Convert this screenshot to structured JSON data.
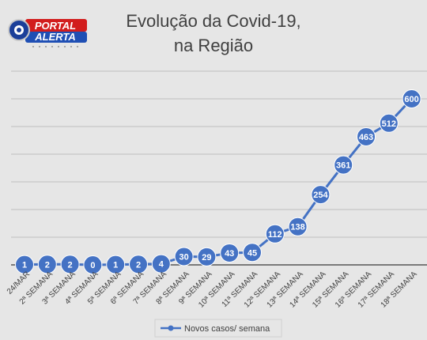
{
  "logo": {
    "line1": "PORTAL",
    "line2": "ALERTA"
  },
  "chart_data": {
    "type": "line",
    "title_lines": [
      "Evolução da Covid-19,",
      "na Região"
    ],
    "categories": [
      "24/MAR",
      "2ª SEMANA",
      "3ª SEMANA",
      "4ª SEMANA",
      "5ª SEMANA",
      "6ª SEMANA",
      "7ª SEMANA",
      "8ª SEMANA",
      "9ª SEMANA",
      "10ª SEMANA",
      "11ª SEMANA",
      "12ª SEMANA",
      "13ª SEMANA",
      "14ª SEMANA",
      "15ª SEMANA",
      "16ª SEMANA",
      "17ª SEMANA",
      "18ª SEMANA"
    ],
    "series": [
      {
        "name": "Novos casos/ semana",
        "values": [
          1,
          2,
          2,
          0,
          1,
          2,
          4,
          30,
          29,
          43,
          45,
          112,
          138,
          254,
          361,
          463,
          512,
          600
        ]
      }
    ],
    "ylim": [
      0,
      700
    ],
    "grid": true,
    "legend_position": "bottom",
    "colors": {
      "line": "#4472c4",
      "grid": "#bfbfbf",
      "text": "#404040",
      "background": "#e6e6e6"
    }
  }
}
